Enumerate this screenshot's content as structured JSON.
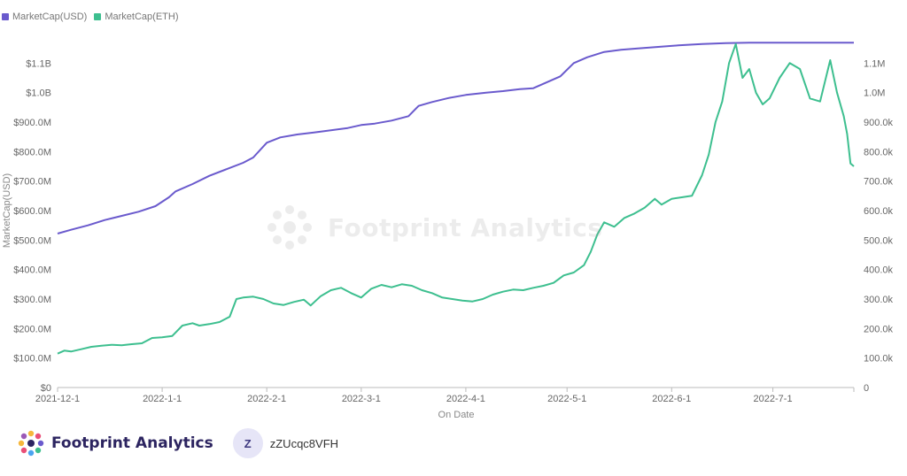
{
  "chart_data": {
    "type": "line",
    "xlabel": "On Date",
    "ylabel": "MarketCap(USD)",
    "x_ticks": [
      "2021-12-1",
      "2022-1-1",
      "2022-2-1",
      "2022-3-1",
      "2022-4-1",
      "2022-5-1",
      "2022-6-1",
      "2022-7-1"
    ],
    "x_range": [
      "2021-12-01",
      "2022-07-25"
    ],
    "y_left": {
      "ticks": [
        "$0",
        "$100.0M",
        "$200.0M",
        "$300.0M",
        "$400.0M",
        "$500.0M",
        "$600.0M",
        "$700.0M",
        "$800.0M",
        "$900.0M",
        "$1.0B",
        "$1.1B"
      ],
      "range": [
        0,
        1200000000
      ]
    },
    "y_right": {
      "ticks": [
        "0",
        "100.0k",
        "200.0k",
        "300.0k",
        "400.0k",
        "500.0k",
        "600.0k",
        "700.0k",
        "800.0k",
        "900.0k",
        "1.0M",
        "1.1M"
      ],
      "range": [
        0,
        1200000
      ]
    },
    "legend_position": "top-left",
    "series": [
      {
        "name": "MarketCap(USD)",
        "axis": "left",
        "color": "#6a5acd",
        "points": [
          [
            "2021-12-01",
            522000000
          ],
          [
            "2021-12-05",
            535000000
          ],
          [
            "2021-12-10",
            550000000
          ],
          [
            "2021-12-15",
            568000000
          ],
          [
            "2021-12-20",
            582000000
          ],
          [
            "2021-12-25",
            596000000
          ],
          [
            "2021-12-30",
            615000000
          ],
          [
            "2022-01-03",
            645000000
          ],
          [
            "2022-01-05",
            665000000
          ],
          [
            "2022-01-10",
            690000000
          ],
          [
            "2022-01-15",
            718000000
          ],
          [
            "2022-01-20",
            740000000
          ],
          [
            "2022-01-25",
            762000000
          ],
          [
            "2022-01-28",
            780000000
          ],
          [
            "2022-02-01",
            830000000
          ],
          [
            "2022-02-05",
            848000000
          ],
          [
            "2022-02-10",
            858000000
          ],
          [
            "2022-02-15",
            865000000
          ],
          [
            "2022-02-20",
            872000000
          ],
          [
            "2022-02-25",
            880000000
          ],
          [
            "2022-03-01",
            890000000
          ],
          [
            "2022-03-05",
            895000000
          ],
          [
            "2022-03-10",
            905000000
          ],
          [
            "2022-03-15",
            920000000
          ],
          [
            "2022-03-18",
            955000000
          ],
          [
            "2022-03-22",
            968000000
          ],
          [
            "2022-03-27",
            982000000
          ],
          [
            "2022-04-01",
            992000000
          ],
          [
            "2022-04-07",
            1000000000
          ],
          [
            "2022-04-12",
            1005000000
          ],
          [
            "2022-04-17",
            1012000000
          ],
          [
            "2022-04-21",
            1015000000
          ],
          [
            "2022-04-26",
            1040000000
          ],
          [
            "2022-04-29",
            1055000000
          ],
          [
            "2022-05-03",
            1100000000
          ],
          [
            "2022-05-07",
            1120000000
          ],
          [
            "2022-05-12",
            1138000000
          ],
          [
            "2022-05-17",
            1145000000
          ],
          [
            "2022-05-22",
            1150000000
          ],
          [
            "2022-05-28",
            1155000000
          ],
          [
            "2022-06-03",
            1160000000
          ],
          [
            "2022-06-10",
            1165000000
          ],
          [
            "2022-06-17",
            1168000000
          ],
          [
            "2022-06-24",
            1169000000
          ],
          [
            "2022-07-01",
            1169000000
          ],
          [
            "2022-07-10",
            1169000000
          ],
          [
            "2022-07-20",
            1169000000
          ],
          [
            "2022-07-25",
            1169000000
          ]
        ]
      },
      {
        "name": "MarketCap(ETH)",
        "axis": "right",
        "color": "#3dbf8f",
        "points": [
          [
            "2021-12-01",
            115000
          ],
          [
            "2021-12-03",
            125000
          ],
          [
            "2021-12-05",
            122000
          ],
          [
            "2021-12-08",
            130000
          ],
          [
            "2021-12-11",
            138000
          ],
          [
            "2021-12-14",
            142000
          ],
          [
            "2021-12-17",
            145000
          ],
          [
            "2021-12-20",
            143000
          ],
          [
            "2021-12-23",
            147000
          ],
          [
            "2021-12-26",
            150000
          ],
          [
            "2021-12-29",
            168000
          ],
          [
            "2022-01-01",
            170000
          ],
          [
            "2022-01-04",
            175000
          ],
          [
            "2022-01-07",
            210000
          ],
          [
            "2022-01-10",
            218000
          ],
          [
            "2022-01-12",
            210000
          ],
          [
            "2022-01-15",
            215000
          ],
          [
            "2022-01-18",
            222000
          ],
          [
            "2022-01-21",
            240000
          ],
          [
            "2022-01-23",
            300000
          ],
          [
            "2022-01-25",
            305000
          ],
          [
            "2022-01-28",
            308000
          ],
          [
            "2022-01-31",
            300000
          ],
          [
            "2022-02-03",
            285000
          ],
          [
            "2022-02-06",
            280000
          ],
          [
            "2022-02-09",
            290000
          ],
          [
            "2022-02-12",
            298000
          ],
          [
            "2022-02-14",
            278000
          ],
          [
            "2022-02-17",
            310000
          ],
          [
            "2022-02-20",
            330000
          ],
          [
            "2022-02-23",
            338000
          ],
          [
            "2022-02-26",
            320000
          ],
          [
            "2022-03-01",
            305000
          ],
          [
            "2022-03-04",
            335000
          ],
          [
            "2022-03-07",
            348000
          ],
          [
            "2022-03-10",
            340000
          ],
          [
            "2022-03-13",
            350000
          ],
          [
            "2022-03-16",
            345000
          ],
          [
            "2022-03-19",
            330000
          ],
          [
            "2022-03-22",
            320000
          ],
          [
            "2022-03-25",
            305000
          ],
          [
            "2022-03-28",
            300000
          ],
          [
            "2022-03-31",
            295000
          ],
          [
            "2022-04-03",
            292000
          ],
          [
            "2022-04-06",
            300000
          ],
          [
            "2022-04-09",
            315000
          ],
          [
            "2022-04-12",
            325000
          ],
          [
            "2022-04-15",
            332000
          ],
          [
            "2022-04-18",
            330000
          ],
          [
            "2022-04-21",
            338000
          ],
          [
            "2022-04-24",
            345000
          ],
          [
            "2022-04-27",
            355000
          ],
          [
            "2022-04-30",
            380000
          ],
          [
            "2022-05-03",
            390000
          ],
          [
            "2022-05-06",
            415000
          ],
          [
            "2022-05-08",
            460000
          ],
          [
            "2022-05-10",
            520000
          ],
          [
            "2022-05-12",
            560000
          ],
          [
            "2022-05-15",
            545000
          ],
          [
            "2022-05-18",
            575000
          ],
          [
            "2022-05-21",
            590000
          ],
          [
            "2022-05-24",
            610000
          ],
          [
            "2022-05-27",
            640000
          ],
          [
            "2022-05-29",
            620000
          ],
          [
            "2022-06-01",
            640000
          ],
          [
            "2022-06-04",
            645000
          ],
          [
            "2022-06-07",
            650000
          ],
          [
            "2022-06-10",
            720000
          ],
          [
            "2022-06-12",
            790000
          ],
          [
            "2022-06-14",
            900000
          ],
          [
            "2022-06-16",
            970000
          ],
          [
            "2022-06-18",
            1100000
          ],
          [
            "2022-06-20",
            1165000
          ],
          [
            "2022-06-22",
            1050000
          ],
          [
            "2022-06-24",
            1080000
          ],
          [
            "2022-06-26",
            1000000
          ],
          [
            "2022-06-28",
            960000
          ],
          [
            "2022-06-30",
            980000
          ],
          [
            "2022-07-03",
            1050000
          ],
          [
            "2022-07-06",
            1100000
          ],
          [
            "2022-07-09",
            1080000
          ],
          [
            "2022-07-12",
            980000
          ],
          [
            "2022-07-15",
            970000
          ],
          [
            "2022-07-18",
            1110000
          ],
          [
            "2022-07-20",
            1000000
          ],
          [
            "2022-07-22",
            920000
          ],
          [
            "2022-07-23",
            860000
          ],
          [
            "2022-07-24",
            760000
          ],
          [
            "2022-07-25",
            750000
          ]
        ]
      }
    ],
    "watermark": "Footprint Analytics"
  },
  "footer": {
    "brand": "Footprint Analytics",
    "avatar_initial": "Z",
    "username": "zZUcqc8VFH"
  }
}
